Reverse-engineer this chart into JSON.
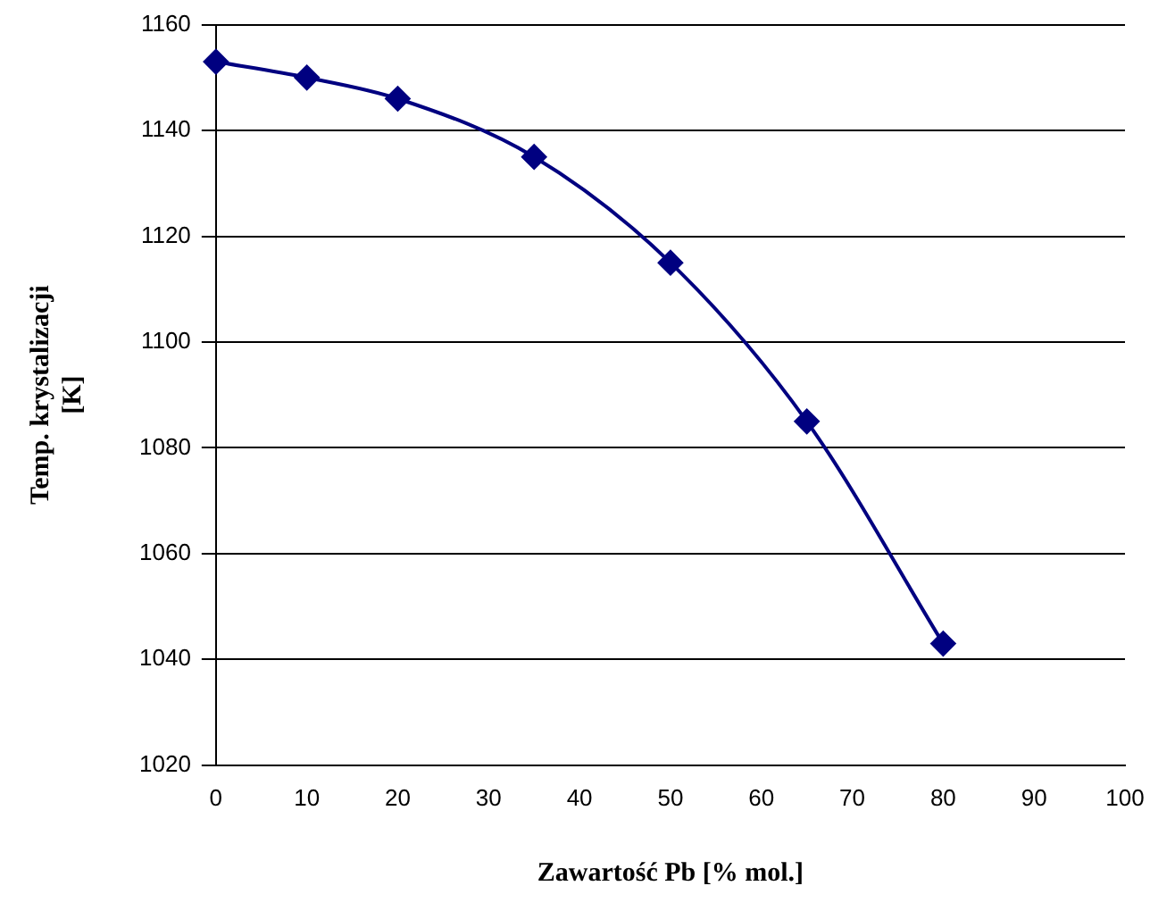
{
  "chart_data": {
    "type": "line",
    "xlabel": "Zawartość Pb [% mol.]",
    "ylabel": "Temp. krystalizacji [K]",
    "x": [
      0,
      10,
      20,
      35,
      50,
      65,
      80
    ],
    "series": [
      {
        "color": "#000080",
        "values": [
          1153,
          1150,
          1146,
          1135,
          1115,
          1085,
          1043
        ]
      }
    ],
    "xlim": [
      0,
      100
    ],
    "xticks": [
      0,
      10,
      20,
      30,
      40,
      50,
      60,
      70,
      80,
      90,
      100
    ],
    "ylim": [
      1020,
      1160
    ],
    "yticks": [
      1020,
      1040,
      1060,
      1080,
      1100,
      1120,
      1140,
      1160
    ],
    "grid": "y",
    "marker": "diamond",
    "line_style": "solid",
    "legend": false
  }
}
